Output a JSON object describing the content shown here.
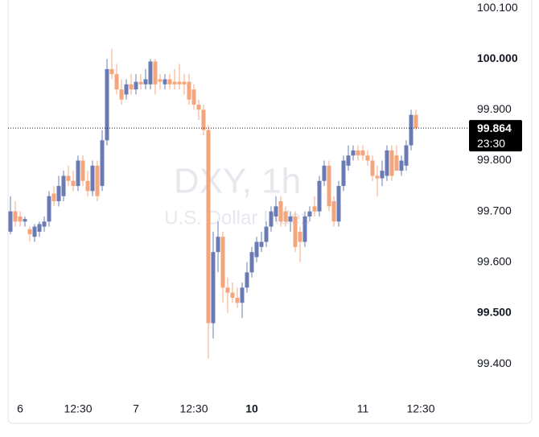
{
  "chart_data": {
    "type": "candlestick",
    "watermark": [
      "DXY, 1h",
      "U.S. Dollar Index"
    ],
    "categories": [
      null,
      null,
      "6",
      null,
      null,
      null,
      null,
      null,
      null,
      null,
      null,
      null,
      null,
      null,
      "12:30",
      null,
      null,
      null,
      null,
      null,
      null,
      null,
      null,
      null,
      null,
      null,
      "7",
      null,
      null,
      null,
      null,
      null,
      null,
      null,
      null,
      null,
      null,
      null,
      "12:30",
      null,
      null,
      null,
      null,
      null,
      null,
      null,
      null,
      null,
      null,
      null,
      "10",
      null,
      null,
      null,
      null,
      null,
      null,
      null,
      null,
      null,
      null,
      null,
      null,
      null,
      null,
      null,
      null,
      null,
      null,
      null,
      null,
      null,
      null,
      "11",
      null,
      null,
      null,
      null,
      null,
      null,
      null,
      null,
      null,
      null,
      null,
      "12:30"
    ],
    "open": [
      99.66,
      99.7,
      99.69,
      99.68,
      99.665,
      99.65,
      99.66,
      99.67,
      99.68,
      99.735,
      99.72,
      99.73,
      99.77,
      99.76,
      99.75,
      99.8,
      99.76,
      99.74,
      99.79,
      99.75,
      99.84,
      99.98,
      99.97,
      99.94,
      99.93,
      99.95,
      99.94,
      99.955,
      99.95,
      99.95,
      99.995,
      99.96,
      99.95,
      99.96,
      99.955,
      99.955,
      99.955,
      99.955,
      99.94,
      99.91,
      99.9,
      99.86,
      99.48,
      99.62,
      99.65,
      99.55,
      99.54,
      99.53,
      99.52,
      99.55,
      99.58,
      99.61,
      99.63,
      99.64,
      99.67,
      99.69,
      99.72,
      99.7,
      99.68,
      99.69,
      99.66,
      99.64,
      99.69,
      99.71,
      99.7,
      99.76,
      99.79,
      99.72,
      99.68,
      99.75,
      99.79,
      99.81,
      99.82,
      99.82,
      99.81,
      99.8,
      99.77,
      99.765,
      99.77,
      99.82,
      99.81,
      99.78,
      99.79,
      99.83,
      99.89,
      null
    ],
    "high": [
      99.73,
      99.72,
      99.7,
      99.69,
      99.67,
      99.675,
      99.68,
      99.69,
      99.74,
      99.75,
      99.77,
      99.78,
      99.79,
      99.78,
      99.81,
      99.81,
      99.78,
      99.8,
      99.8,
      99.86,
      100.0,
      100.02,
      99.99,
      99.96,
      99.96,
      99.97,
      99.97,
      99.97,
      99.98,
      100.0,
      100.0,
      99.97,
      99.97,
      99.97,
      99.98,
      99.99,
      99.97,
      99.97,
      99.95,
      99.92,
      99.91,
      99.87,
      99.66,
      99.68,
      99.66,
      99.57,
      99.56,
      99.55,
      99.56,
      99.6,
      99.63,
      99.65,
      99.66,
      99.68,
      99.71,
      99.73,
      99.73,
      99.71,
      99.7,
      99.7,
      99.67,
      99.7,
      99.71,
      99.73,
      99.77,
      99.8,
      99.8,
      99.73,
      99.76,
      99.81,
      99.83,
      99.83,
      99.83,
      99.83,
      99.82,
      99.81,
      99.79,
      99.8,
      99.83,
      99.83,
      99.83,
      99.81,
      99.84,
      99.9,
      99.9,
      null
    ],
    "low": [
      99.655,
      99.67,
      99.67,
      99.67,
      99.64,
      99.64,
      99.65,
      99.66,
      99.67,
      99.71,
      99.71,
      99.72,
      99.75,
      99.74,
      99.74,
      99.75,
      99.73,
      99.73,
      99.72,
      99.74,
      99.83,
      99.96,
      99.93,
      99.91,
      99.92,
      99.93,
      99.93,
      99.94,
      99.94,
      99.94,
      99.93,
      99.94,
      99.94,
      99.94,
      99.94,
      99.94,
      99.93,
      99.91,
      99.9,
      99.88,
      99.85,
      99.41,
      99.45,
      99.58,
      99.52,
      99.5,
      99.52,
      99.51,
      99.49,
      99.54,
      99.57,
      99.6,
      99.62,
      99.63,
      99.66,
      99.68,
      99.67,
      99.67,
      99.66,
      99.62,
      99.6,
      99.63,
      99.68,
      99.69,
      99.69,
      99.75,
      99.7,
      99.67,
      99.67,
      99.74,
      99.78,
      99.8,
      99.8,
      99.8,
      99.79,
      99.76,
      99.73,
      99.75,
      99.76,
      99.76,
      99.78,
      99.77,
      99.78,
      99.82,
      99.86,
      null
    ],
    "close": [
      99.7,
      99.68,
      99.68,
      99.685,
      99.655,
      99.67,
      99.675,
      99.68,
      99.73,
      99.72,
      99.75,
      99.77,
      99.76,
      99.75,
      99.8,
      99.76,
      99.74,
      99.79,
      99.73,
      99.84,
      99.98,
      99.97,
      99.94,
      99.92,
      99.95,
      99.94,
      99.955,
      99.95,
      99.96,
      99.995,
      99.95,
      99.955,
      99.96,
      99.95,
      99.95,
      99.95,
      99.95,
      99.92,
      99.91,
      99.9,
      99.86,
      99.48,
      99.62,
      99.65,
      99.55,
      99.54,
      99.53,
      99.52,
      99.55,
      99.58,
      99.62,
      99.64,
      99.64,
      99.67,
      99.7,
      99.71,
      99.68,
      99.68,
      99.69,
      99.63,
      99.64,
      99.69,
      99.7,
      99.7,
      99.76,
      99.79,
      99.71,
      99.68,
      99.75,
      99.8,
      99.81,
      99.82,
      99.81,
      99.81,
      99.8,
      99.77,
      99.765,
      99.78,
      99.82,
      99.77,
      99.78,
      99.8,
      99.83,
      99.89,
      99.864,
      null
    ],
    "up_color": "#6a7bb4",
    "down_color": "#f4a57c",
    "ylim": [
      99.332,
      100.116
    ],
    "yticks": [
      {
        "value": 99.4,
        "label": "99.400"
      },
      {
        "value": 99.5,
        "label": "99.500",
        "weight": "bold"
      },
      {
        "value": 99.6,
        "label": "99.600"
      },
      {
        "value": 99.7,
        "label": "99.700"
      },
      {
        "value": 99.8,
        "label": "99.800"
      },
      {
        "value": 99.9,
        "label": "99.900"
      },
      {
        "value": 100.0,
        "label": "100.000",
        "weight": "bold"
      },
      {
        "value": 100.1,
        "label": "100.100"
      }
    ],
    "bold_categories": [
      "10"
    ],
    "last_price": 99.864,
    "countdown": "23:30"
  }
}
